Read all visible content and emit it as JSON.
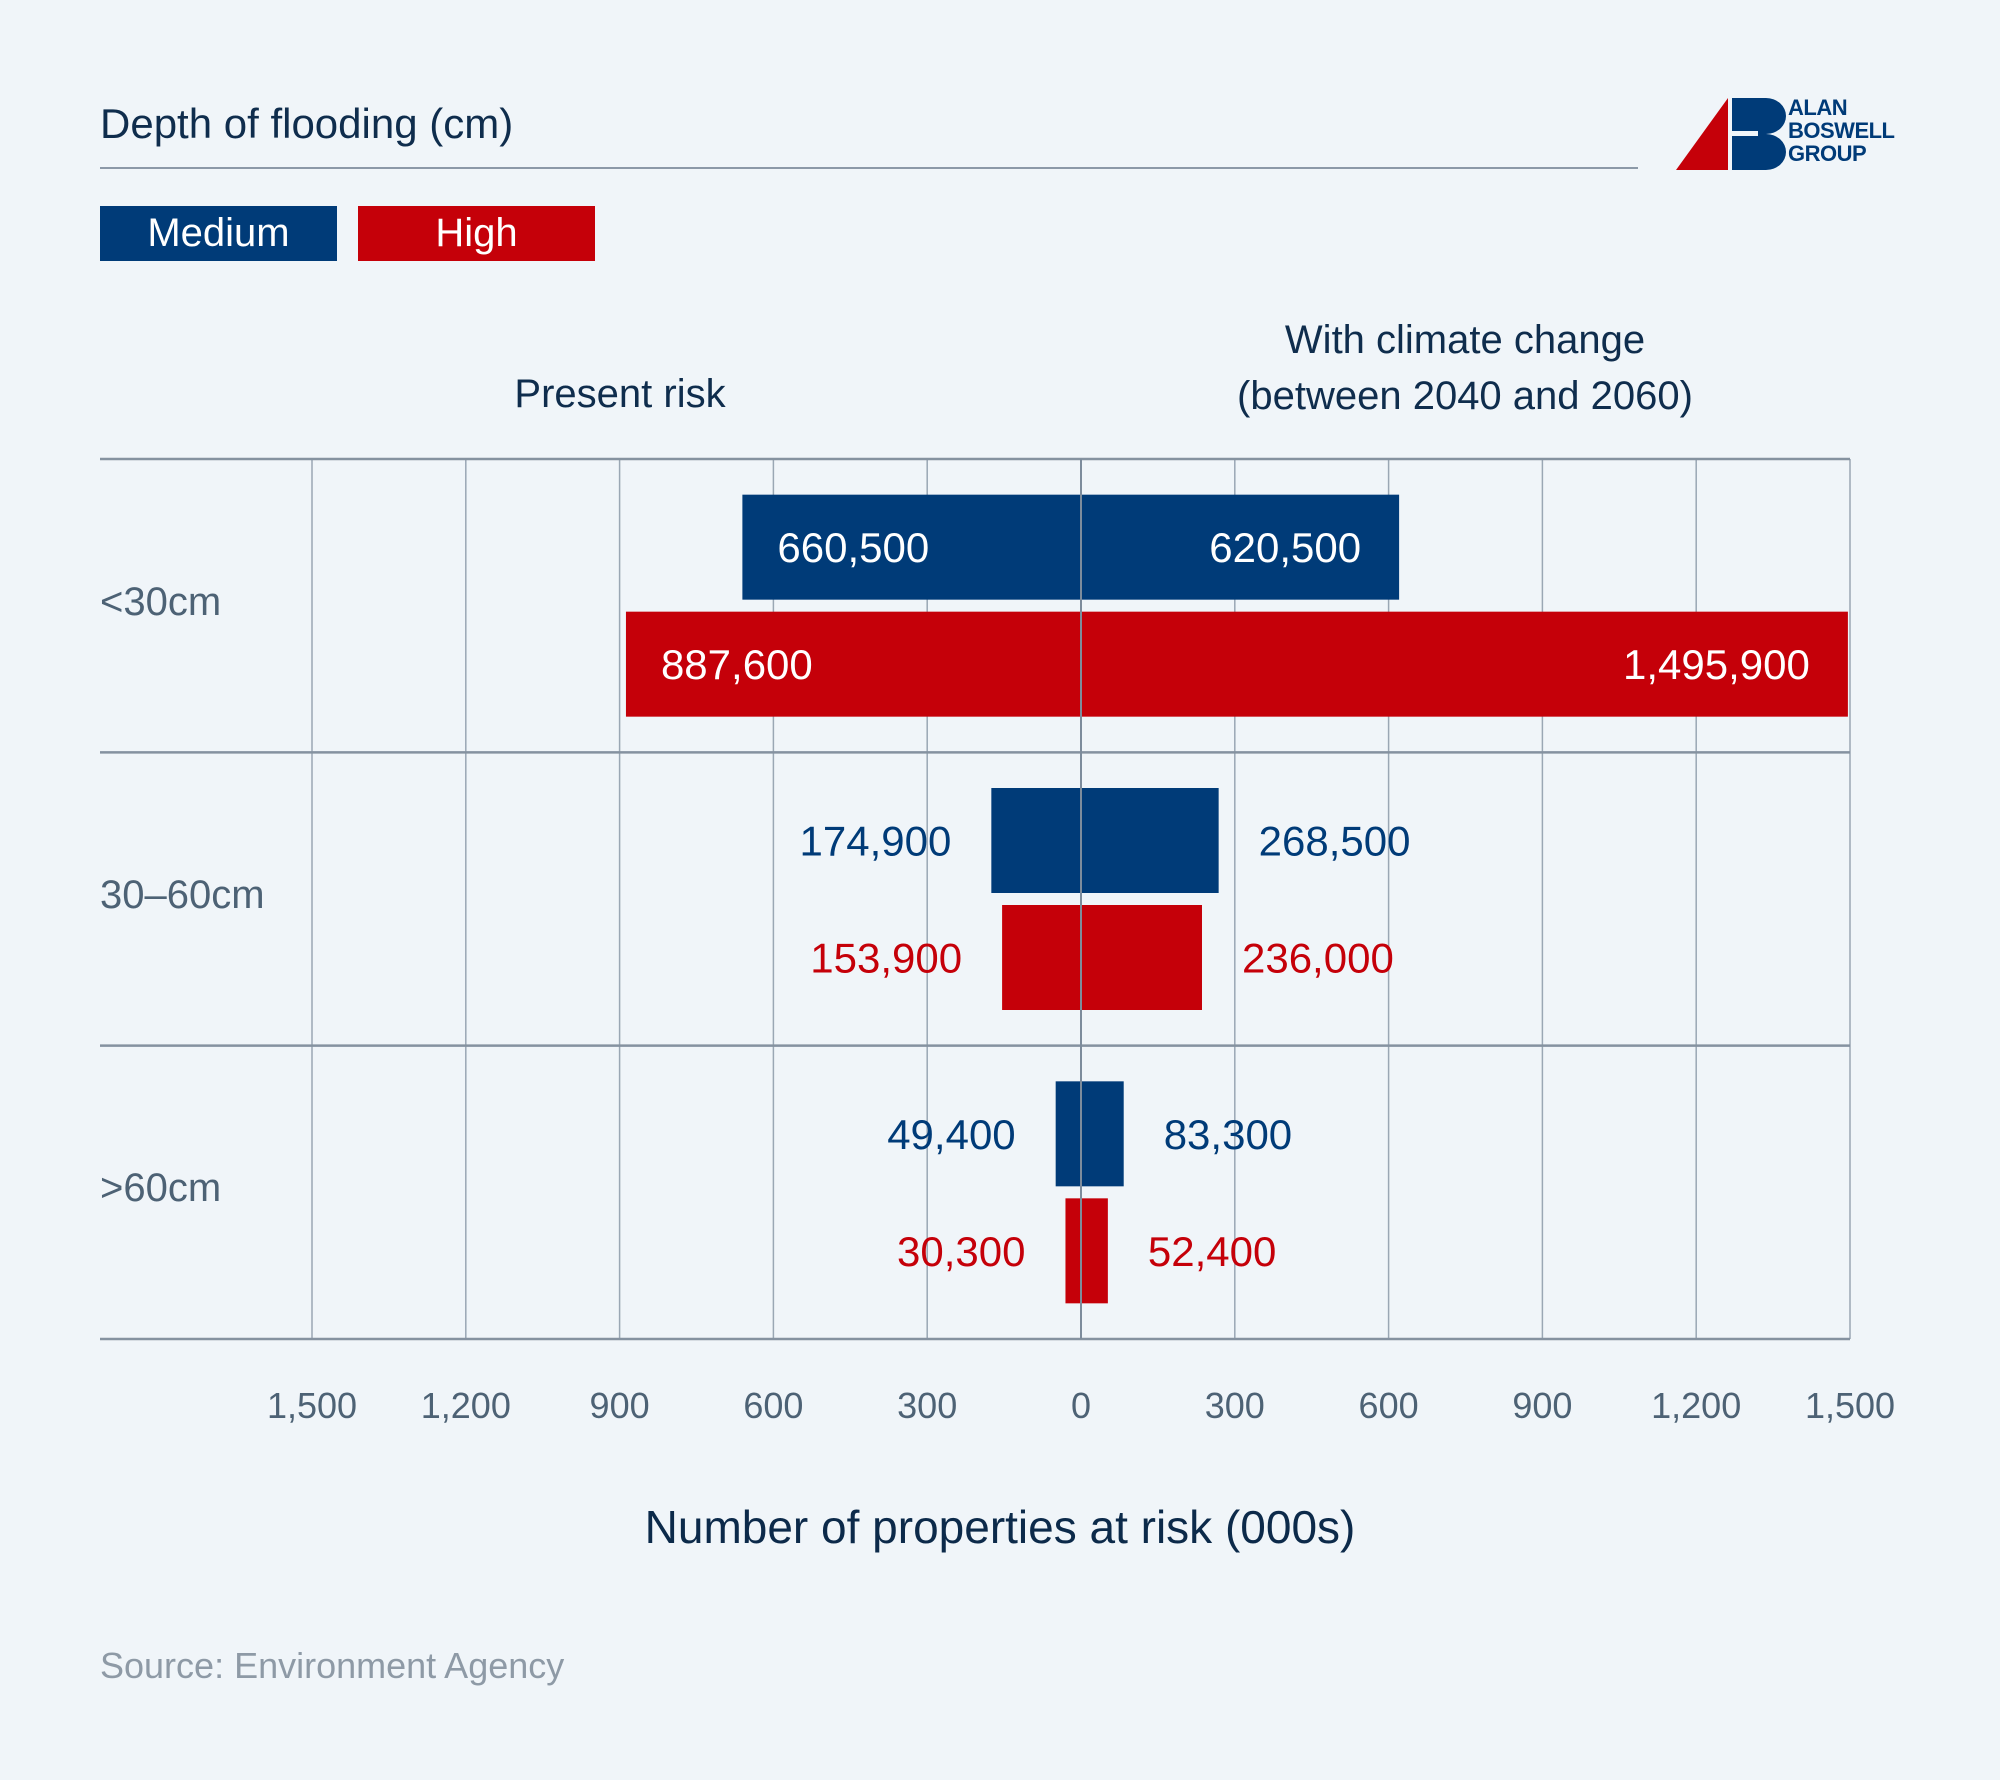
{
  "header": {
    "title": "Depth of flooding (cm)",
    "logo": {
      "lines": [
        "ALAN",
        "BOSWELL",
        "GROUP"
      ],
      "icon": "ab-logo-icon"
    }
  },
  "legend": {
    "items": [
      {
        "label": "Medium",
        "color": "#003b78"
      },
      {
        "label": "High",
        "color": "#c50009"
      }
    ]
  },
  "footer": {
    "source": "Source: Environment Agency"
  },
  "colors": {
    "medium": "#003b78",
    "high": "#c50009",
    "grid": "#9aa7b4",
    "axis": "#8592a0",
    "tick_text": "#4d6275"
  },
  "chart_data": {
    "type": "bar",
    "orientation": "horizontal-diverging",
    "title": "Depth of flooding (cm)",
    "left_heading": "Present risk",
    "right_heading_lines": [
      "With climate change",
      "(between 2040 and 2060)"
    ],
    "xlabel": "Number of properties at risk (000s)",
    "categories": [
      "<30cm",
      "30–60cm",
      ">60cm"
    ],
    "xlim": [
      0,
      1500
    ],
    "ticks": [
      0,
      300,
      600,
      900,
      1200,
      1500
    ],
    "tick_labels_left": [
      "1,500",
      "1,200",
      "900",
      "600",
      "300"
    ],
    "tick_labels_center": "0",
    "tick_labels_right": [
      "300",
      "600",
      "900",
      "1,200",
      "1,500"
    ],
    "grid": true,
    "legend_position": "top-left",
    "series": [
      {
        "name": "Medium",
        "side_values": {
          "present": [
            660500,
            174900,
            49400
          ],
          "climate_change": [
            620500,
            268500,
            83300
          ]
        },
        "labels": {
          "present": [
            "660,500",
            "174,900",
            "49,400"
          ],
          "climate_change": [
            "620,500",
            "268,500",
            "83,300"
          ]
        }
      },
      {
        "name": "High",
        "side_values": {
          "present": [
            887600,
            153900,
            30300
          ],
          "climate_change": [
            1495900,
            236000,
            52400
          ]
        },
        "labels": {
          "present": [
            "887,600",
            "153,900",
            "30,300"
          ],
          "climate_change": [
            "1,495,900",
            "236,000",
            "52,400"
          ]
        }
      }
    ]
  }
}
